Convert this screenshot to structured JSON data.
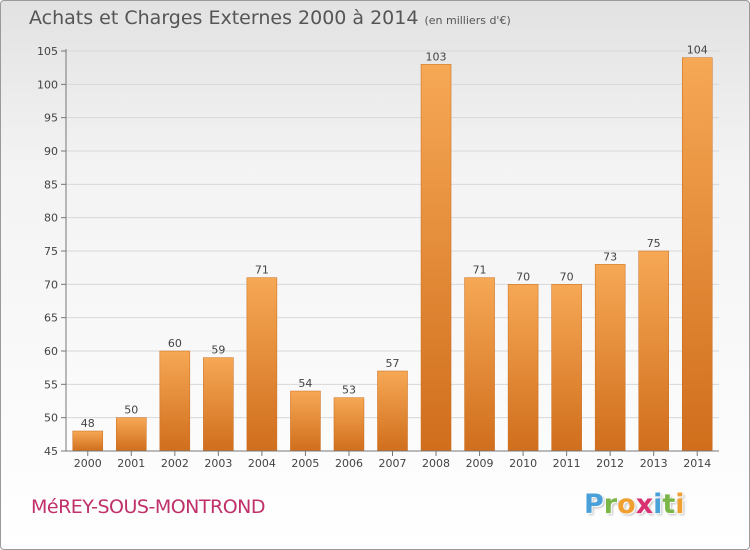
{
  "title": "Achats et Charges Externes 2000 à 2014",
  "subtitle": "(en milliers d'€)",
  "commune": "MéREY-SOUS-MONTROND",
  "brand": {
    "letters": [
      {
        "ch": "P",
        "color": "#4aa0d8"
      },
      {
        "ch": "r",
        "color": "#7ab648"
      },
      {
        "ch": "o",
        "color": "#f0a030"
      },
      {
        "ch": "x",
        "color": "#d83070"
      },
      {
        "ch": "i",
        "color": "#4aa0d8"
      },
      {
        "ch": "t",
        "color": "#7ab648"
      },
      {
        "ch": "i",
        "color": "#f0a030"
      }
    ]
  },
  "colors": {
    "bar_light": "#f6a855",
    "bar_dark": "#d06e1c",
    "grid": "#d8d8d8",
    "axis": "#777777",
    "text": "#444444"
  },
  "chart_data": {
    "type": "bar",
    "categories": [
      "2000",
      "2001",
      "2002",
      "2003",
      "2004",
      "2005",
      "2006",
      "2007",
      "2008",
      "2009",
      "2010",
      "2011",
      "2012",
      "2013",
      "2014"
    ],
    "values": [
      48,
      50,
      60,
      59,
      71,
      54,
      53,
      57,
      103,
      71,
      70,
      70,
      73,
      75,
      104
    ],
    "ylim": [
      45,
      105
    ],
    "yticks": [
      45,
      50,
      55,
      60,
      65,
      70,
      75,
      80,
      85,
      90,
      95,
      100,
      105
    ],
    "grid": true
  }
}
